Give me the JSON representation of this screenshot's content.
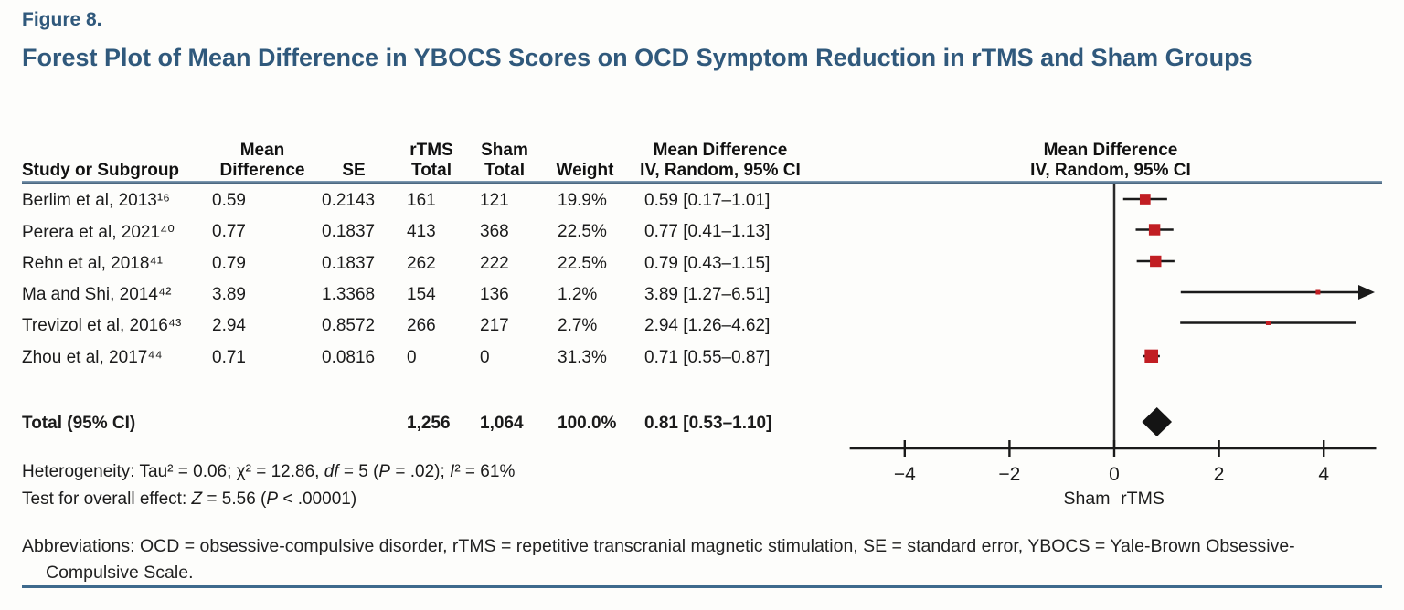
{
  "figure": {
    "label": "Figure 8.",
    "title": "Forest Plot of Mean Difference in YBOCS Scores on OCD Symptom Reduction in rTMS and Sham Groups"
  },
  "table": {
    "headers": {
      "study": "Study or Subgroup",
      "md_line1": "Mean",
      "md_line2": "Difference",
      "se": "SE",
      "rtms_line1": "rTMS",
      "rtms_line2": "Total",
      "sham_line1": "Sham",
      "sham_line2": "Total",
      "weight": "Weight",
      "ci_line1": "Mean Difference",
      "ci_line2": "IV, Random, 95% CI"
    },
    "plot_header_line1": "Mean Difference",
    "plot_header_line2": "IV, Random, 95% CI"
  },
  "chart_data": {
    "type": "scatter",
    "variant": "forest_plot",
    "title": "Forest Plot of Mean Difference in YBOCS Scores on OCD Symptom Reduction in rTMS and Sham Groups",
    "x_axis": {
      "ticks": [
        -4,
        -2,
        0,
        2,
        4
      ],
      "tick_labels": [
        "−4",
        "−2",
        "0",
        "2",
        "4"
      ],
      "xlim": [
        -5.05,
        5.0
      ],
      "left_label": "Sham",
      "right_label": "rTMS"
    },
    "studies": [
      {
        "name": "Berlim et al, 2013¹⁶",
        "md": "0.59",
        "se": "0.2143",
        "rtms_total": "161",
        "sham_total": "121",
        "weight": "19.9%",
        "ci_text": "0.59 [0.17–1.01]",
        "estimate": 0.59,
        "ci_low": 0.17,
        "ci_high": 1.01,
        "weight_pct": 19.9
      },
      {
        "name": "Perera et al, 2021⁴⁰",
        "md": "0.77",
        "se": "0.1837",
        "rtms_total": "413",
        "sham_total": "368",
        "weight": "22.5%",
        "ci_text": "0.77 [0.41–1.13]",
        "estimate": 0.77,
        "ci_low": 0.41,
        "ci_high": 1.13,
        "weight_pct": 22.5
      },
      {
        "name": "Rehn et al, 2018⁴¹",
        "md": "0.79",
        "se": "0.1837",
        "rtms_total": "262",
        "sham_total": "222",
        "weight": "22.5%",
        "ci_text": "0.79 [0.43–1.15]",
        "estimate": 0.79,
        "ci_low": 0.43,
        "ci_high": 1.15,
        "weight_pct": 22.5
      },
      {
        "name": "Ma and Shi, 2014⁴²",
        "md": "3.89",
        "se": "1.3368",
        "rtms_total": "154",
        "sham_total": "136",
        "weight": "1.2%",
        "ci_text": "3.89 [1.27–6.51]",
        "estimate": 3.89,
        "ci_low": 1.27,
        "ci_high": 6.51,
        "weight_pct": 1.2
      },
      {
        "name": "Trevizol et al, 2016⁴³",
        "md": "2.94",
        "se": "0.8572",
        "rtms_total": "266",
        "sham_total": "217",
        "weight": "2.7%",
        "ci_text": "2.94 [1.26–4.62]",
        "estimate": 2.94,
        "ci_low": 1.26,
        "ci_high": 4.62,
        "weight_pct": 2.7
      },
      {
        "name": "Zhou et al, 2017⁴⁴",
        "md": "0.71",
        "se": "0.0816",
        "rtms_total": "0",
        "sham_total": "0",
        "weight": "31.3%",
        "ci_text": "0.71 [0.55–0.87]",
        "estimate": 0.71,
        "ci_low": 0.55,
        "ci_high": 0.87,
        "weight_pct": 31.3
      }
    ],
    "total": {
      "label": "Total (95% CI)",
      "rtms_total": "1,256",
      "sham_total": "1,064",
      "weight": "100.0%",
      "ci_text": "0.81 [0.53–1.10]",
      "estimate": 0.81,
      "ci_low": 0.53,
      "ci_high": 1.1
    },
    "marker_color": "#c11e23",
    "diamond_color": "#141414",
    "line_color": "#1a1a1a"
  },
  "stats": {
    "het_parts": [
      "Heterogeneity: Tau² = 0.06; χ² = 12.86, ",
      "df",
      " = 5 (",
      "P",
      " = .02); ",
      "I",
      "² = 61%"
    ],
    "effect_parts": [
      "Test for overall effect: ",
      "Z",
      " = 5.56 (",
      "P",
      " < .00001)"
    ]
  },
  "footer": {
    "abbreviations": "Abbreviations: OCD = obsessive-compulsive disorder, rTMS = repetitive transcranial magnetic stimulation, SE = standard error, YBOCS = Yale-Brown Obsessive-Compulsive Scale."
  },
  "colors": {
    "title_blue": "#30597c",
    "rule_blue": "#3e6a8d",
    "marker_red": "#c11e23",
    "text": "#1b1b1b"
  }
}
